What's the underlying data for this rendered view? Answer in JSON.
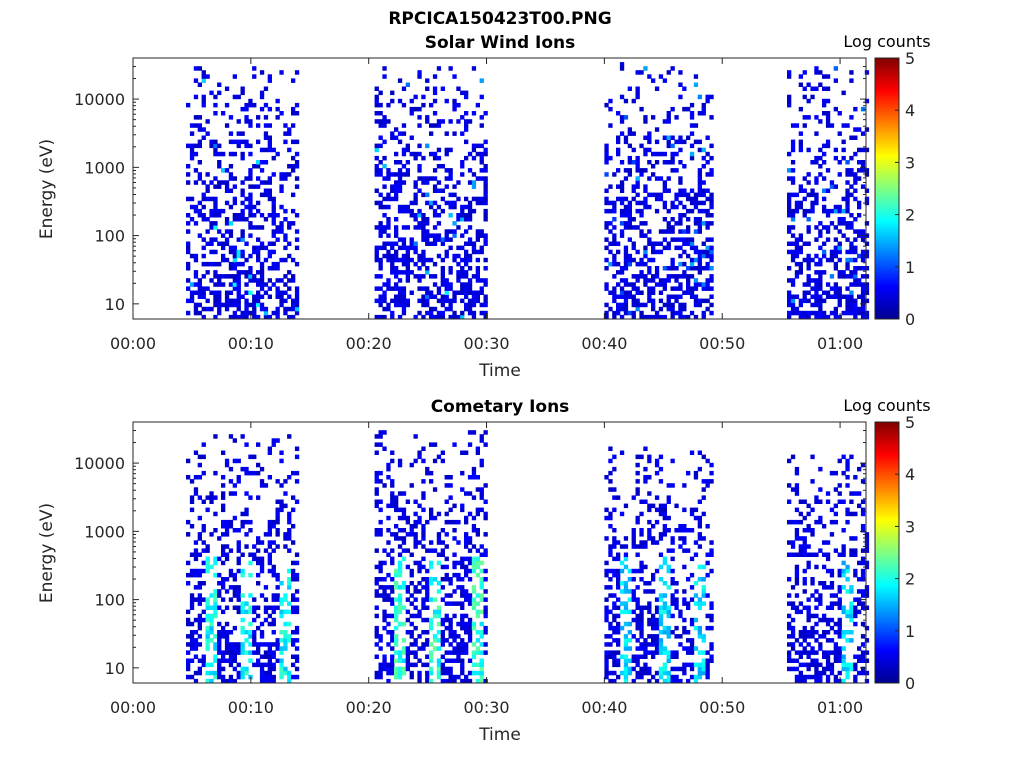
{
  "figure_title": "RPCICA150423T00.PNG",
  "colors": {
    "background": "#ffffff",
    "axis": "#262626",
    "colormap": "jet"
  },
  "chart_data": [
    {
      "type": "heatmap",
      "title": "Solar Wind Ions",
      "xlabel": "Time",
      "ylabel": "Energy (eV)",
      "x_ticks": [
        "00:00",
        "00:10",
        "00:20",
        "00:30",
        "00:40",
        "00:50",
        "01:00"
      ],
      "x_tick_values_min": [
        0,
        10,
        20,
        30,
        40,
        50,
        60
      ],
      "xlim_min": [
        0,
        62.2
      ],
      "y_scale": "log",
      "y_ticks": [
        "10",
        "100",
        "1000",
        "10000"
      ],
      "y_tick_values": [
        10,
        100,
        1000,
        10000
      ],
      "ylim": [
        6,
        40000
      ],
      "grid": false,
      "colorbar": {
        "label": "Log counts",
        "range": [
          0,
          5
        ],
        "ticks": [
          "0",
          "1",
          "2",
          "3",
          "4",
          "5"
        ]
      },
      "bursts": [
        {
          "t_start_min": 4.5,
          "t_end_min": 14.0,
          "e_low_eV": 6,
          "e_high_eV": 30000,
          "typical_log_counts": 0.3,
          "peak_log_counts": 2.0
        },
        {
          "t_start_min": 20.5,
          "t_end_min": 30.0,
          "e_low_eV": 6,
          "e_high_eV": 30000,
          "typical_log_counts": 0.3,
          "peak_log_counts": 1.8
        },
        {
          "t_start_min": 40.0,
          "t_end_min": 49.0,
          "e_low_eV": 6,
          "e_high_eV": 35000,
          "typical_log_counts": 0.3,
          "peak_log_counts": 1.5
        },
        {
          "t_start_min": 55.5,
          "t_end_min": 62.2,
          "e_low_eV": 6,
          "e_high_eV": 30000,
          "typical_log_counts": 0.3,
          "peak_log_counts": 1.5
        }
      ]
    },
    {
      "type": "heatmap",
      "title": "Cometary Ions",
      "xlabel": "Time",
      "ylabel": "Energy (eV)",
      "x_ticks": [
        "00:00",
        "00:10",
        "00:20",
        "00:30",
        "00:40",
        "00:50",
        "01:00"
      ],
      "x_tick_values_min": [
        0,
        10,
        20,
        30,
        40,
        50,
        60
      ],
      "xlim_min": [
        0,
        62.2
      ],
      "y_scale": "log",
      "y_ticks": [
        "10",
        "100",
        "1000",
        "10000"
      ],
      "y_tick_values": [
        10,
        100,
        1000,
        10000
      ],
      "ylim": [
        6,
        40000
      ],
      "grid": false,
      "colorbar": {
        "label": "Log counts",
        "range": [
          0,
          5
        ],
        "ticks": [
          "0",
          "1",
          "2",
          "3",
          "4",
          "5"
        ]
      },
      "bursts": [
        {
          "t_start_min": 4.5,
          "t_end_min": 14.0,
          "e_low_eV": 6,
          "e_high_eV": 25000,
          "typical_log_counts": 0.3,
          "peak_log_counts": 2.2
        },
        {
          "t_start_min": 20.5,
          "t_end_min": 30.0,
          "e_low_eV": 6,
          "e_high_eV": 30000,
          "typical_log_counts": 0.3,
          "peak_log_counts": 2.4
        },
        {
          "t_start_min": 40.0,
          "t_end_min": 49.0,
          "e_low_eV": 6,
          "e_high_eV": 17000,
          "typical_log_counts": 0.3,
          "peak_log_counts": 2.0
        },
        {
          "t_start_min": 55.5,
          "t_end_min": 62.2,
          "e_low_eV": 6,
          "e_high_eV": 12000,
          "typical_log_counts": 0.3,
          "peak_log_counts": 2.0
        }
      ],
      "intense_columns_min": [
        6.5,
        9.5,
        12.8,
        22.5,
        25.5,
        29.0,
        41.5,
        44.8,
        48.0,
        60.5
      ]
    }
  ]
}
